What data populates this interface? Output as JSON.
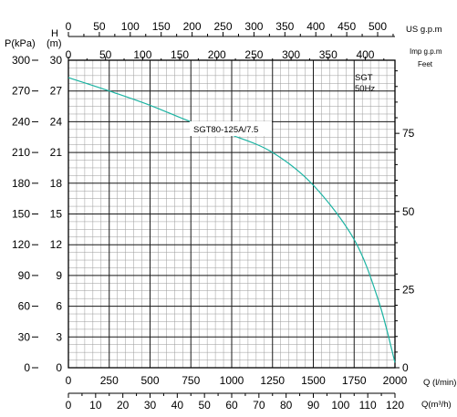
{
  "chart_data": {
    "type": "line",
    "series": [
      {
        "name": "SGT80-125A/7.5",
        "x_unit": "l/min",
        "x": [
          0,
          250,
          500,
          750,
          1000,
          1250,
          1500,
          1750,
          1900,
          2000
        ],
        "y": [
          28.3,
          27.0,
          25.6,
          24.0,
          22.7,
          21.0,
          17.8,
          12.5,
          6.5,
          0.5
        ]
      }
    ],
    "series_color": "#1bb3a2",
    "series_label": "SGT80-125A/7.5",
    "info_label_line1": "SGT",
    "info_label_line2": "50Hz",
    "axes": {
      "q_lmin": {
        "label": "Q (l/min)",
        "range": [
          0,
          2000
        ],
        "ticks": [
          "0",
          "250",
          "500",
          "750",
          "1000",
          "1250",
          "1500",
          "1750",
          "2000"
        ]
      },
      "q_m3h": {
        "label": "Q(m³/h)",
        "range": [
          0,
          120
        ],
        "ticks": [
          "0",
          "10",
          "20",
          "30",
          "40",
          "50",
          "60",
          "70",
          "80",
          "90",
          "100",
          "110",
          "120"
        ]
      },
      "h_m": {
        "label_line1": "H",
        "label_line2": "(m)",
        "range": [
          0,
          30
        ],
        "ticks": [
          "0",
          "3",
          "6",
          "9",
          "12",
          "15",
          "18",
          "21",
          "24",
          "27",
          "30"
        ]
      },
      "p_kpa": {
        "label": "P(kPa)",
        "range": [
          0,
          300
        ],
        "ticks": [
          "0",
          "30",
          "60",
          "90",
          "120",
          "150",
          "180",
          "210",
          "240",
          "270",
          "300"
        ]
      },
      "us_gpm": {
        "label": "US  g.p.m",
        "range": [
          0,
          528
        ],
        "ticks": [
          "0",
          "50",
          "100",
          "150",
          "200",
          "250",
          "300",
          "350",
          "400",
          "450",
          "500"
        ]
      },
      "imp_gpm": {
        "label": "Imp  g.p.m",
        "range": [
          0,
          440
        ],
        "ticks": [
          "0",
          "50",
          "100",
          "150",
          "200",
          "250",
          "300",
          "350",
          "400"
        ]
      },
      "feet": {
        "label": "Feet",
        "range": [
          0,
          98.4
        ],
        "ticks": [
          "0",
          "25",
          "50",
          "75"
        ]
      }
    },
    "grid": true
  }
}
